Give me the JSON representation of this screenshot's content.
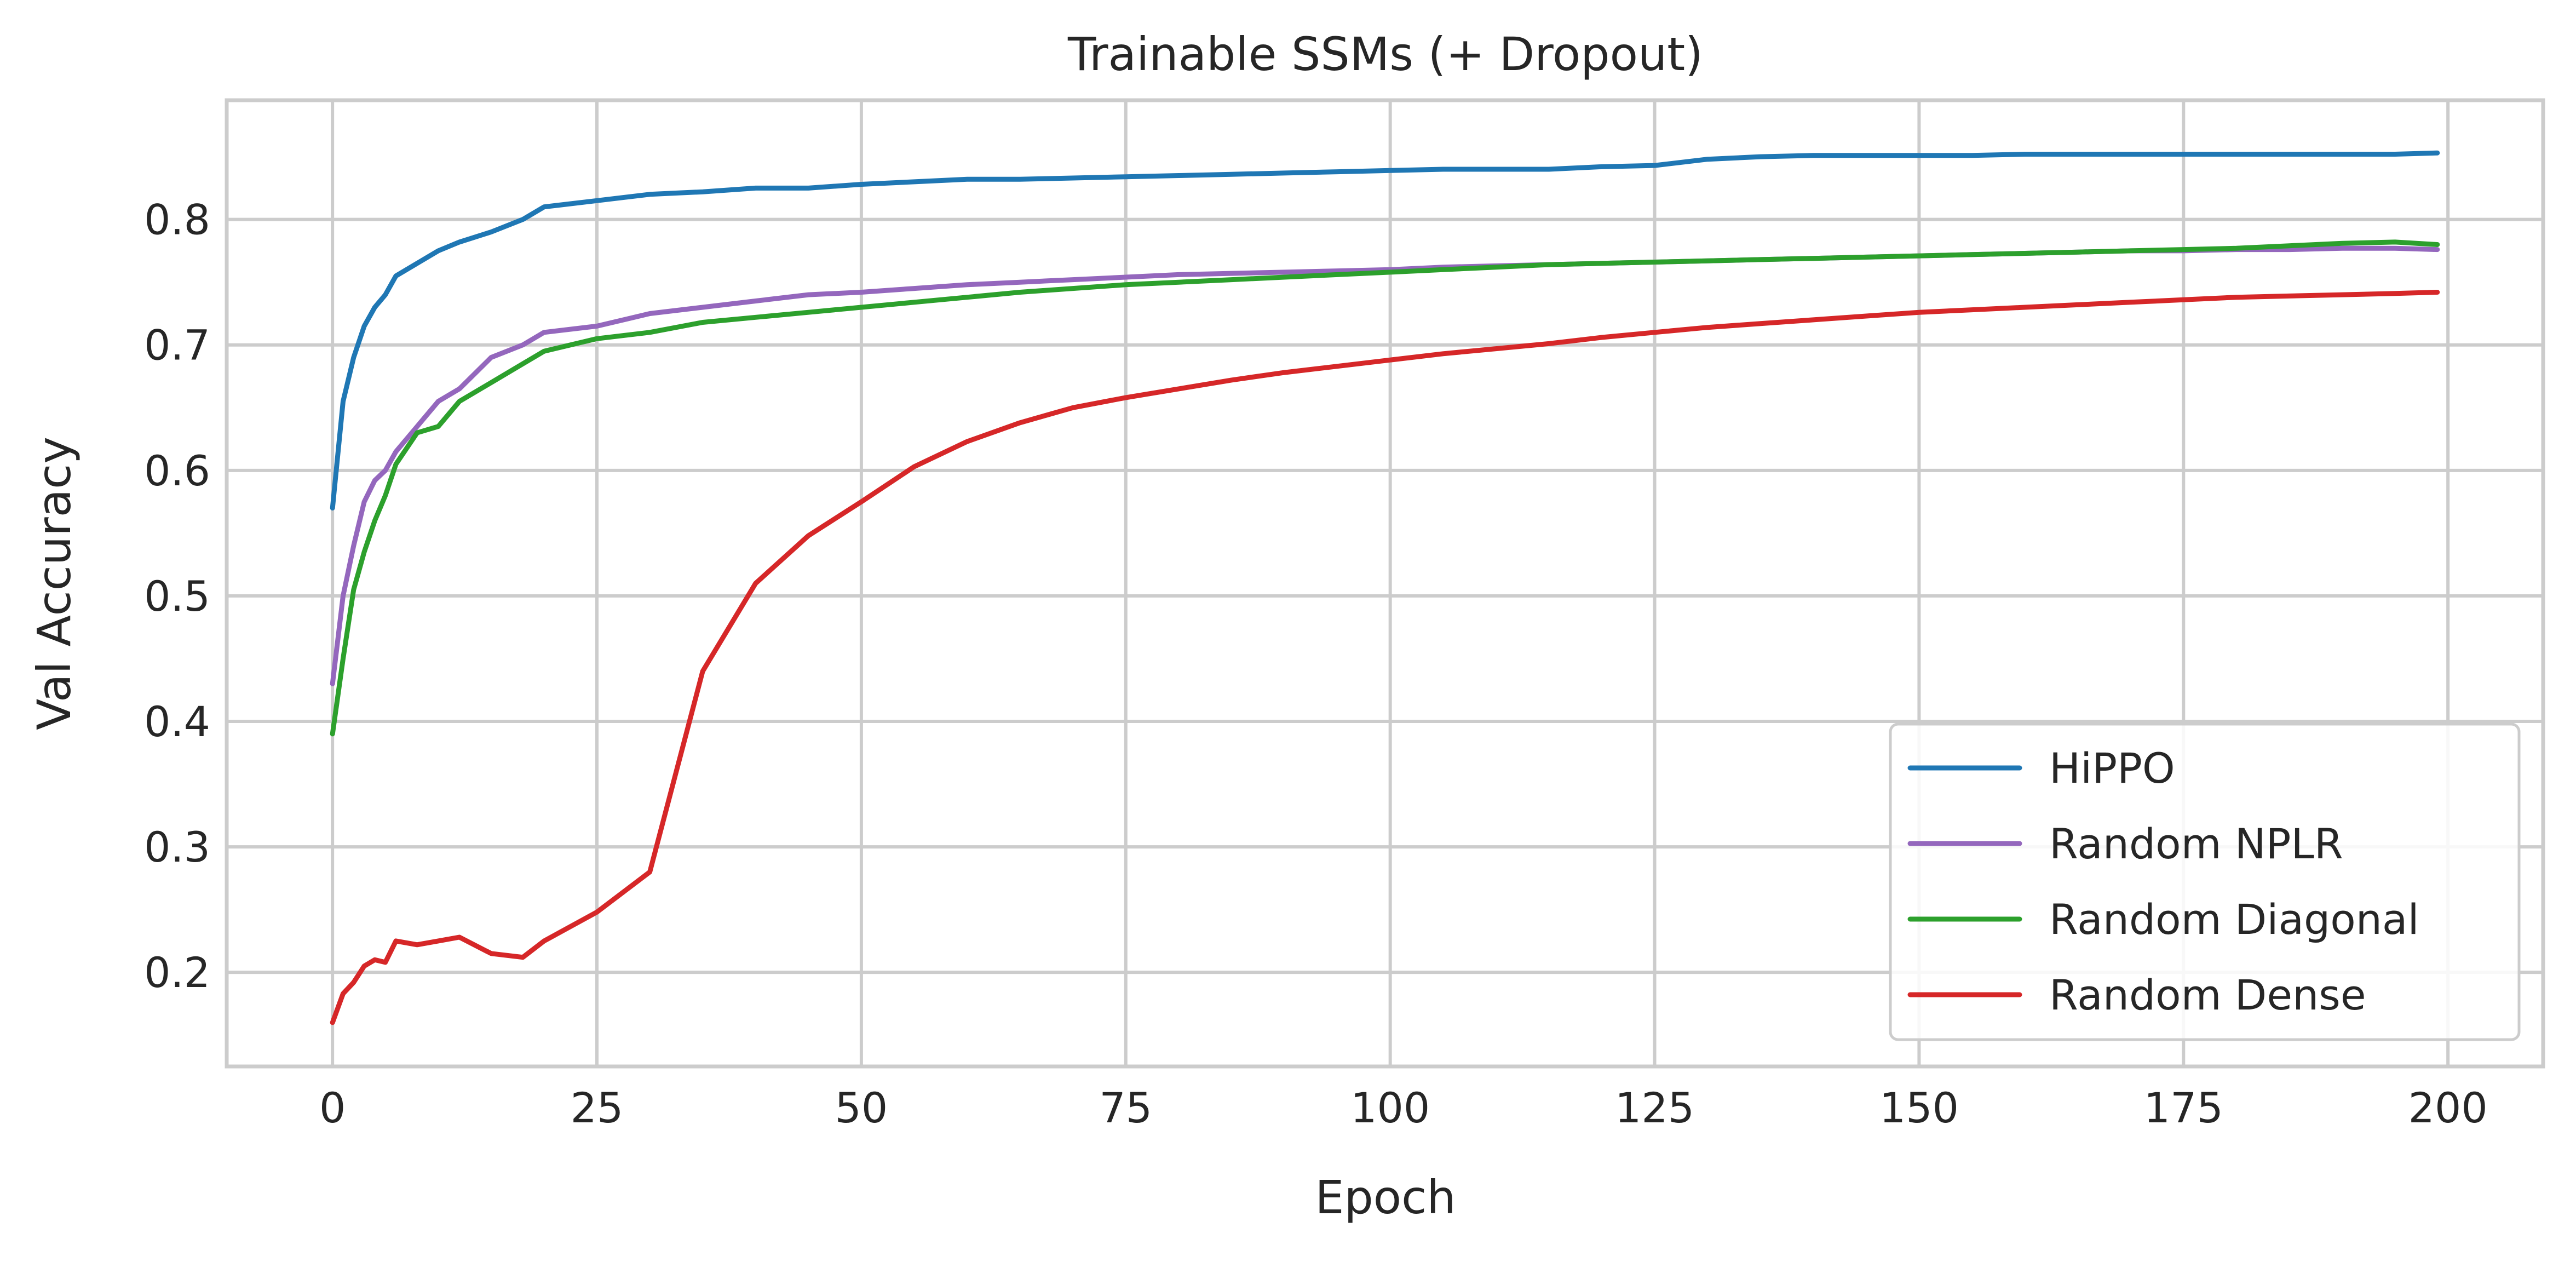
{
  "chart_data": {
    "type": "line",
    "title": "Trainable SSMs (+ Dropout)",
    "xlabel": "Epoch",
    "ylabel": "Val Accuracy",
    "xlim": [
      -10,
      209
    ],
    "ylim": [
      0.125,
      0.895
    ],
    "xticks": [
      0,
      25,
      50,
      75,
      100,
      125,
      150,
      175,
      200
    ],
    "xtick_labels": [
      "0",
      "25",
      "50",
      "75",
      "100",
      "125",
      "150",
      "175",
      "200"
    ],
    "yticks": [
      0.2,
      0.3,
      0.4,
      0.5,
      0.6,
      0.7,
      0.8
    ],
    "ytick_labels": [
      "0.2",
      "0.3",
      "0.4",
      "0.5",
      "0.6",
      "0.7",
      "0.8"
    ],
    "grid": true,
    "legend_position": "lower-right",
    "x": [
      0,
      1,
      2,
      3,
      4,
      5,
      6,
      8,
      10,
      12,
      15,
      18,
      20,
      25,
      30,
      35,
      40,
      45,
      50,
      55,
      60,
      65,
      70,
      75,
      80,
      85,
      90,
      95,
      100,
      105,
      110,
      115,
      120,
      125,
      130,
      135,
      140,
      145,
      150,
      155,
      160,
      165,
      170,
      175,
      180,
      185,
      190,
      195,
      199
    ],
    "series": [
      {
        "name": "HiPPO",
        "color": "#1f77b4",
        "values": [
          0.57,
          0.655,
          0.69,
          0.715,
          0.73,
          0.74,
          0.755,
          0.765,
          0.775,
          0.782,
          0.79,
          0.8,
          0.81,
          0.815,
          0.82,
          0.822,
          0.825,
          0.825,
          0.828,
          0.83,
          0.832,
          0.832,
          0.833,
          0.834,
          0.835,
          0.836,
          0.837,
          0.838,
          0.839,
          0.84,
          0.84,
          0.84,
          0.842,
          0.843,
          0.848,
          0.85,
          0.851,
          0.851,
          0.851,
          0.851,
          0.852,
          0.852,
          0.852,
          0.852,
          0.852,
          0.852,
          0.852,
          0.852,
          0.853
        ]
      },
      {
        "name": "Random NPLR",
        "color": "#9467bd",
        "values": [
          0.43,
          0.5,
          0.54,
          0.575,
          0.592,
          0.6,
          0.615,
          0.635,
          0.655,
          0.665,
          0.69,
          0.7,
          0.71,
          0.715,
          0.725,
          0.73,
          0.735,
          0.74,
          0.742,
          0.745,
          0.748,
          0.75,
          0.752,
          0.754,
          0.756,
          0.757,
          0.758,
          0.759,
          0.76,
          0.762,
          0.763,
          0.764,
          0.765,
          0.766,
          0.767,
          0.768,
          0.769,
          0.77,
          0.771,
          0.772,
          0.773,
          0.774,
          0.775,
          0.775,
          0.776,
          0.776,
          0.777,
          0.777,
          0.776
        ]
      },
      {
        "name": "Random Diagonal",
        "color": "#2ca02c",
        "values": [
          0.39,
          0.45,
          0.505,
          0.535,
          0.56,
          0.58,
          0.605,
          0.63,
          0.635,
          0.655,
          0.67,
          0.685,
          0.695,
          0.705,
          0.71,
          0.718,
          0.722,
          0.726,
          0.73,
          0.734,
          0.738,
          0.742,
          0.745,
          0.748,
          0.75,
          0.752,
          0.754,
          0.756,
          0.758,
          0.76,
          0.762,
          0.764,
          0.765,
          0.766,
          0.767,
          0.768,
          0.769,
          0.77,
          0.771,
          0.772,
          0.773,
          0.774,
          0.775,
          0.776,
          0.777,
          0.779,
          0.781,
          0.782,
          0.78
        ]
      },
      {
        "name": "Random Dense",
        "color": "#d62728",
        "values": [
          0.16,
          0.183,
          0.192,
          0.205,
          0.21,
          0.208,
          0.225,
          0.222,
          0.225,
          0.228,
          0.215,
          0.212,
          0.225,
          0.248,
          0.28,
          0.44,
          0.51,
          0.548,
          0.575,
          0.603,
          0.623,
          0.638,
          0.65,
          0.658,
          0.665,
          0.672,
          0.678,
          0.683,
          0.688,
          0.693,
          0.697,
          0.701,
          0.706,
          0.71,
          0.714,
          0.717,
          0.72,
          0.723,
          0.726,
          0.728,
          0.73,
          0.732,
          0.734,
          0.736,
          0.738,
          0.739,
          0.74,
          0.741,
          0.742
        ]
      }
    ]
  }
}
